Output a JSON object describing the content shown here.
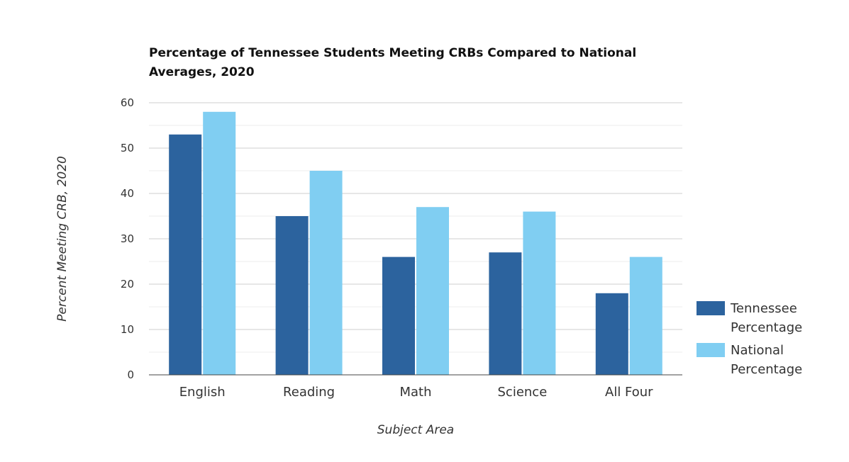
{
  "chart_data": {
    "type": "bar",
    "title": "Percentage of Tennessee Students Meeting CRBs Compared to National Averages, 2020",
    "xlabel": "Subject Area",
    "ylabel": "Percent Meeting CRB, 2020",
    "ylim": [
      0,
      60
    ],
    "yticks": [
      0,
      10,
      20,
      30,
      40,
      50,
      60
    ],
    "categories": [
      "English",
      "Reading",
      "Math",
      "Science",
      "All Four"
    ],
    "series": [
      {
        "name": "Tennessee Percentage",
        "name_lines": [
          "Tennessee",
          "Percentage"
        ],
        "color": "#2c639e",
        "values": [
          53,
          35,
          26,
          27,
          18
        ]
      },
      {
        "name": "National Percentage",
        "name_lines": [
          "National",
          "Percentage"
        ],
        "color": "#80cef2",
        "values": [
          58,
          45,
          37,
          36,
          26
        ]
      }
    ],
    "grid": true,
    "legend_position": "right"
  }
}
